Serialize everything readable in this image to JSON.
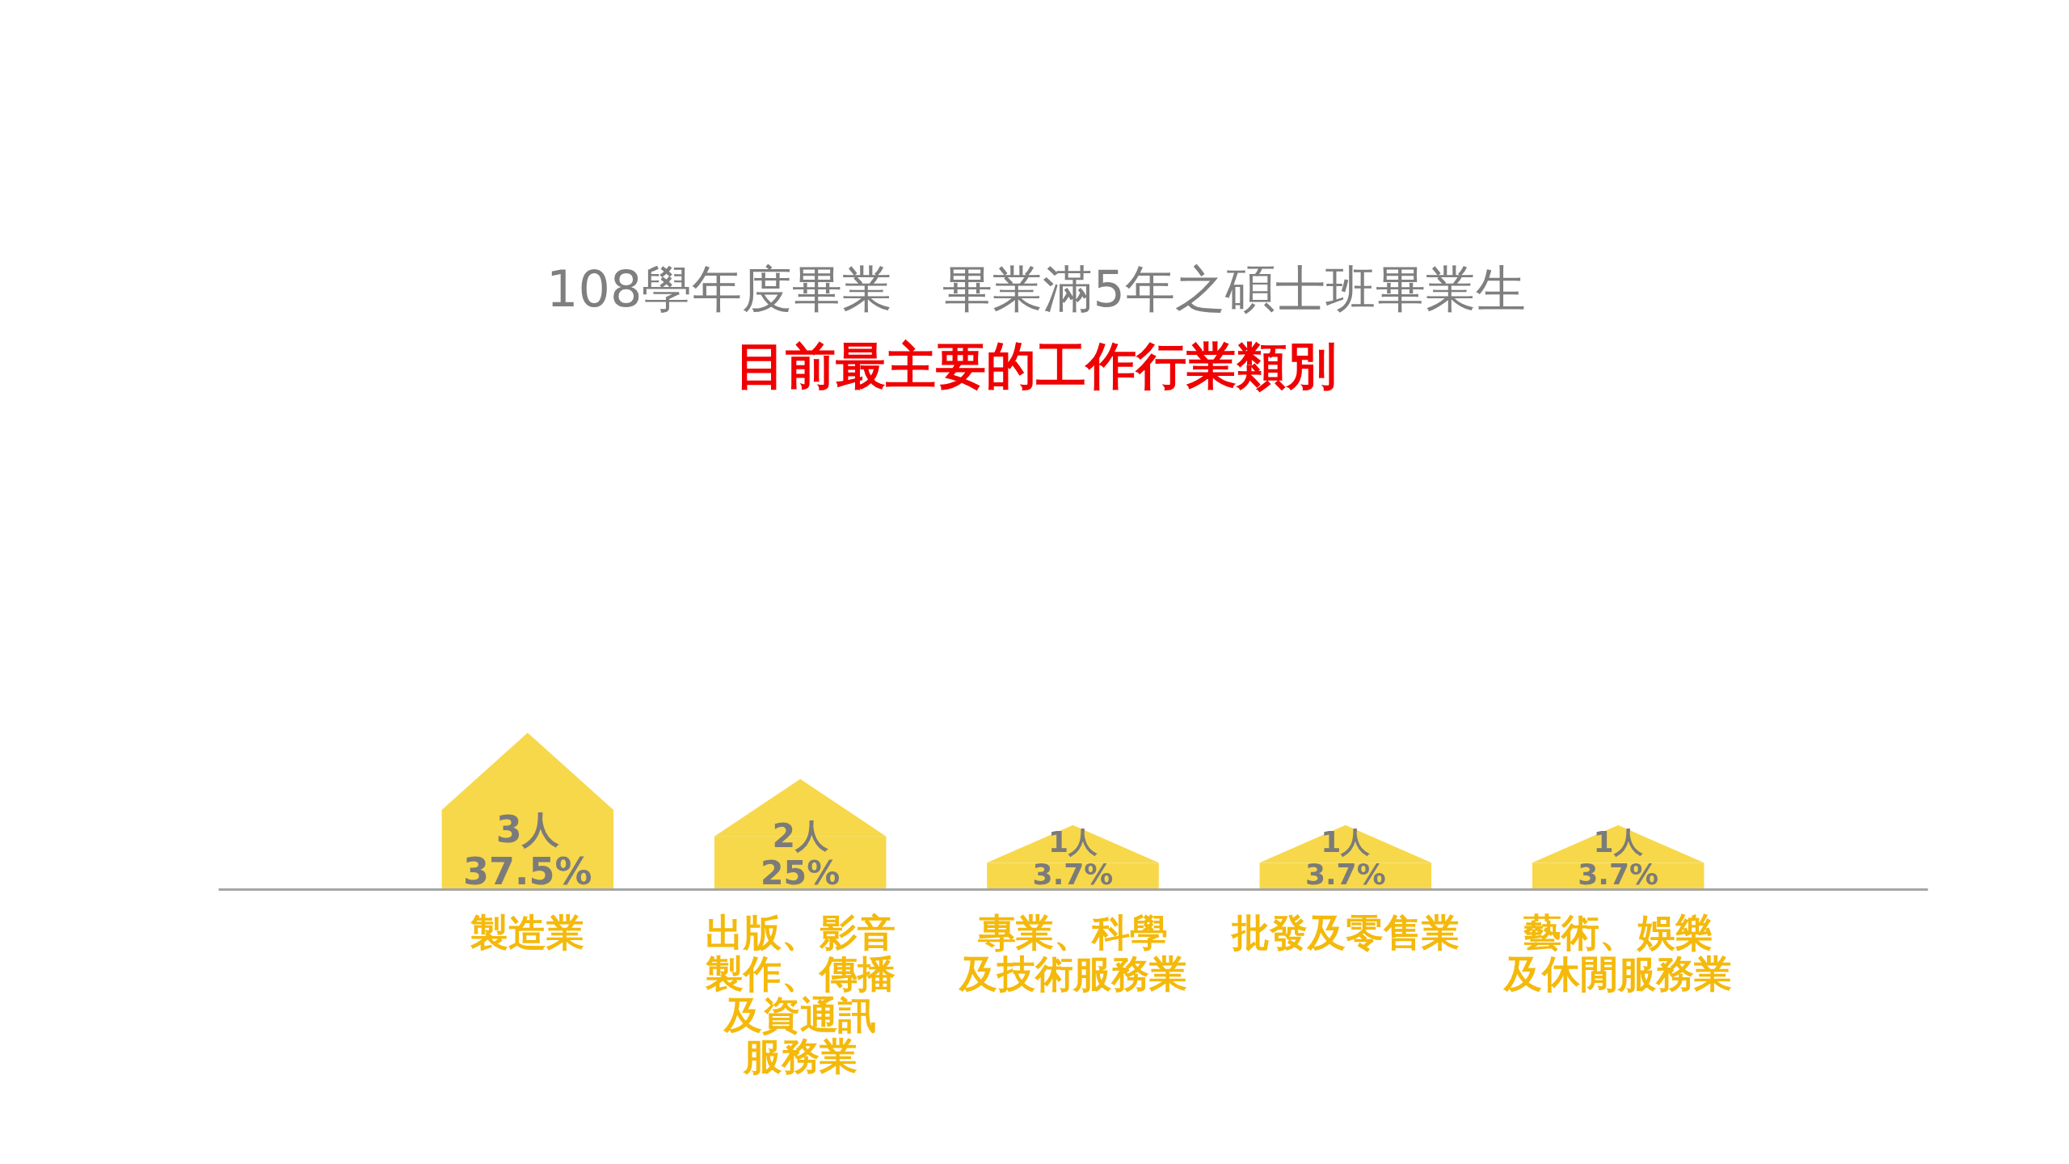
{
  "chart_data": {
    "type": "bar",
    "title": "108學年度畢業　畢業滿5年之碩士班畢業生",
    "subtitle": "目前最主要的工作行業類別",
    "categories": [
      "製造業",
      "出版、影音製作、傳播及資通訊服務業",
      "專業、科學及技術服務業",
      "批發及零售業",
      "藝術、娛樂及休閒服務業"
    ],
    "values": [
      3,
      2,
      1,
      1,
      1
    ],
    "value_labels": [
      "3人\n37.5%",
      "2人\n25%",
      "1人\n3.7%",
      "1人\n3.7%",
      "1人\n3.7%"
    ],
    "color": "#f7d84a"
  }
}
